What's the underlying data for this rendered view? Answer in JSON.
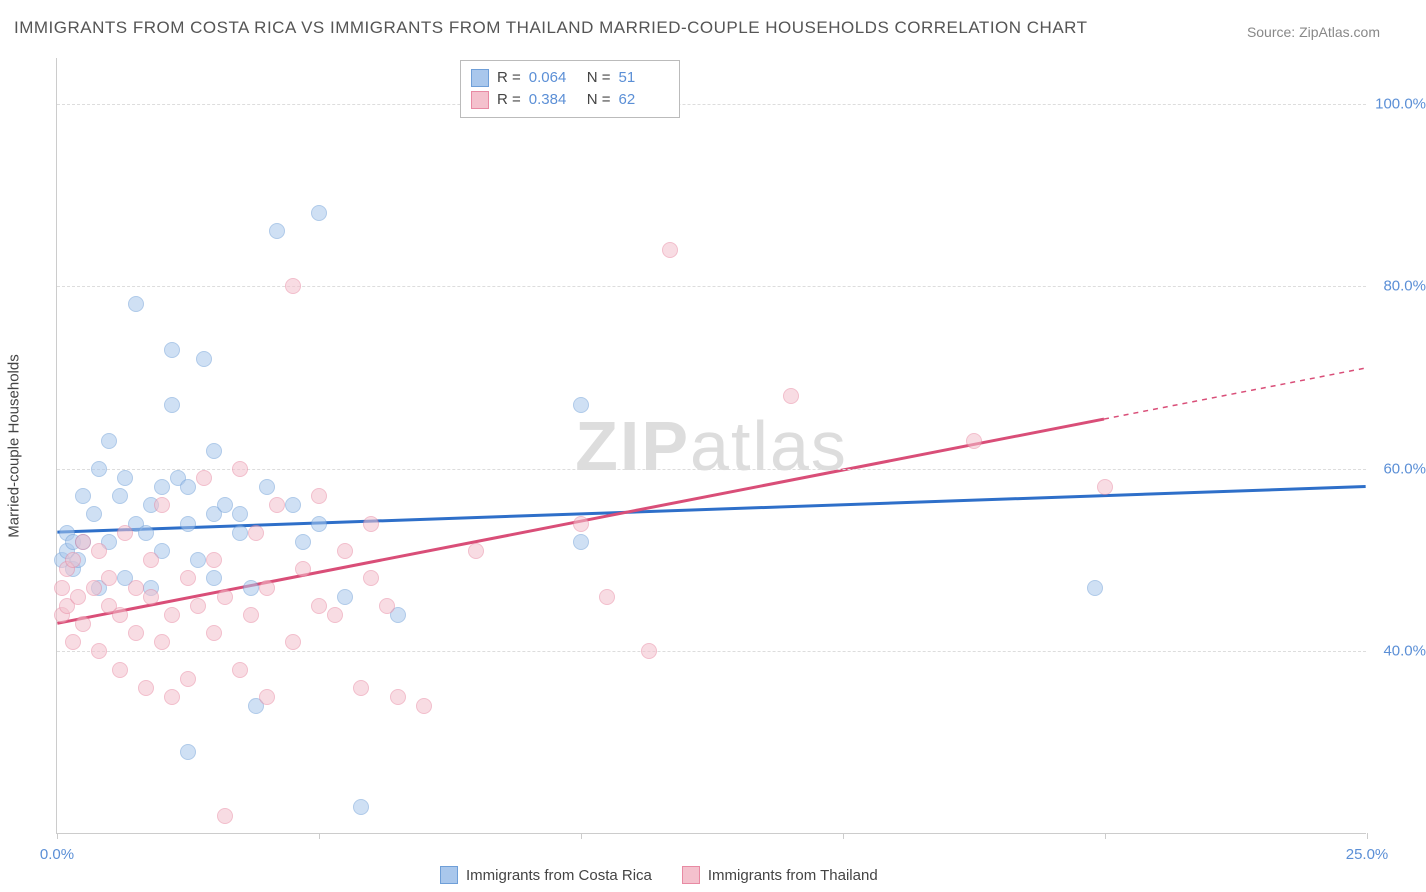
{
  "title": "IMMIGRANTS FROM COSTA RICA VS IMMIGRANTS FROM THAILAND MARRIED-COUPLE HOUSEHOLDS CORRELATION CHART",
  "source": "Source: ZipAtlas.com",
  "y_axis_label": "Married-couple Households",
  "watermark_a": "ZIP",
  "watermark_b": "atlas",
  "chart": {
    "type": "scatter",
    "background_color": "#ffffff",
    "grid_color": "#dddddd",
    "xlim": [
      0,
      25
    ],
    "ylim": [
      20,
      105
    ],
    "x_ticks": [
      0,
      5,
      10,
      15,
      20,
      25
    ],
    "x_tick_labels": {
      "0": "0.0%",
      "25": "25.0%"
    },
    "y_ticks": [
      40,
      60,
      80,
      100
    ],
    "y_tick_labels": [
      "40.0%",
      "60.0%",
      "80.0%",
      "100.0%"
    ],
    "point_radius": 8,
    "point_opacity": 0.55,
    "series": [
      {
        "name": "Immigrants from Costa Rica",
        "color_fill": "#a9c7ec",
        "color_stroke": "#6f9fd8",
        "R": "0.064",
        "N": "51",
        "trend": {
          "color": "#2e6fc9",
          "width": 3,
          "y_at_x0": 53,
          "y_at_x25": 58,
          "x_solid_end": 25,
          "dash_after": false
        },
        "points": [
          [
            0.1,
            50
          ],
          [
            0.2,
            51
          ],
          [
            0.2,
            53
          ],
          [
            0.3,
            49
          ],
          [
            0.3,
            52
          ],
          [
            0.4,
            50
          ],
          [
            0.5,
            52
          ],
          [
            0.5,
            57
          ],
          [
            0.7,
            55
          ],
          [
            0.8,
            60
          ],
          [
            0.8,
            47
          ],
          [
            1.0,
            63
          ],
          [
            1.0,
            52
          ],
          [
            1.2,
            57
          ],
          [
            1.3,
            59
          ],
          [
            1.3,
            48
          ],
          [
            1.5,
            54
          ],
          [
            1.5,
            78
          ],
          [
            1.7,
            53
          ],
          [
            1.8,
            56
          ],
          [
            1.8,
            47
          ],
          [
            2.0,
            58
          ],
          [
            2.0,
            51
          ],
          [
            2.2,
            67
          ],
          [
            2.2,
            73
          ],
          [
            2.3,
            59
          ],
          [
            2.5,
            54
          ],
          [
            2.5,
            58
          ],
          [
            2.5,
            29
          ],
          [
            2.7,
            50
          ],
          [
            2.8,
            72
          ],
          [
            3.0,
            55
          ],
          [
            3.0,
            48
          ],
          [
            3.0,
            62
          ],
          [
            3.2,
            56
          ],
          [
            3.5,
            55
          ],
          [
            3.5,
            53
          ],
          [
            3.7,
            47
          ],
          [
            3.8,
            34
          ],
          [
            4.0,
            58
          ],
          [
            4.2,
            86
          ],
          [
            4.5,
            56
          ],
          [
            4.7,
            52
          ],
          [
            5.0,
            54
          ],
          [
            5.0,
            88
          ],
          [
            5.5,
            46
          ],
          [
            5.8,
            23
          ],
          [
            6.5,
            44
          ],
          [
            10.0,
            67
          ],
          [
            10.0,
            52
          ],
          [
            19.8,
            47
          ]
        ]
      },
      {
        "name": "Immigrants from Thailand",
        "color_fill": "#f4c1cd",
        "color_stroke": "#e88aa3",
        "R": "0.384",
        "N": "62",
        "trend": {
          "color": "#d94e78",
          "width": 3,
          "y_at_x0": 43,
          "y_at_x25": 71,
          "x_solid_end": 20,
          "dash_after": true
        },
        "points": [
          [
            0.1,
            47
          ],
          [
            0.1,
            44
          ],
          [
            0.2,
            49
          ],
          [
            0.2,
            45
          ],
          [
            0.3,
            50
          ],
          [
            0.3,
            41
          ],
          [
            0.4,
            46
          ],
          [
            0.5,
            52
          ],
          [
            0.5,
            43
          ],
          [
            0.7,
            47
          ],
          [
            0.8,
            40
          ],
          [
            0.8,
            51
          ],
          [
            1.0,
            45
          ],
          [
            1.0,
            48
          ],
          [
            1.2,
            44
          ],
          [
            1.2,
            38
          ],
          [
            1.3,
            53
          ],
          [
            1.5,
            47
          ],
          [
            1.5,
            42
          ],
          [
            1.7,
            36
          ],
          [
            1.8,
            50
          ],
          [
            1.8,
            46
          ],
          [
            2.0,
            41
          ],
          [
            2.0,
            56
          ],
          [
            2.2,
            44
          ],
          [
            2.2,
            35
          ],
          [
            2.5,
            48
          ],
          [
            2.5,
            37
          ],
          [
            2.7,
            45
          ],
          [
            2.8,
            59
          ],
          [
            3.0,
            42
          ],
          [
            3.0,
            50
          ],
          [
            3.2,
            22
          ],
          [
            3.2,
            46
          ],
          [
            3.5,
            60
          ],
          [
            3.5,
            38
          ],
          [
            3.7,
            44
          ],
          [
            3.8,
            53
          ],
          [
            4.0,
            47
          ],
          [
            4.0,
            35
          ],
          [
            4.2,
            56
          ],
          [
            4.5,
            41
          ],
          [
            4.5,
            80
          ],
          [
            4.7,
            49
          ],
          [
            5.0,
            45
          ],
          [
            5.0,
            57
          ],
          [
            5.3,
            44
          ],
          [
            5.5,
            51
          ],
          [
            5.8,
            36
          ],
          [
            6.0,
            48
          ],
          [
            6.0,
            54
          ],
          [
            6.3,
            45
          ],
          [
            6.5,
            35
          ],
          [
            7.0,
            34
          ],
          [
            8.0,
            51
          ],
          [
            10.0,
            54
          ],
          [
            10.5,
            46
          ],
          [
            11.3,
            40
          ],
          [
            11.7,
            84
          ],
          [
            14.0,
            68
          ],
          [
            17.5,
            63
          ],
          [
            20.0,
            58
          ]
        ]
      }
    ]
  },
  "legend_top": {
    "r_label": "R =",
    "n_label": "N ="
  }
}
